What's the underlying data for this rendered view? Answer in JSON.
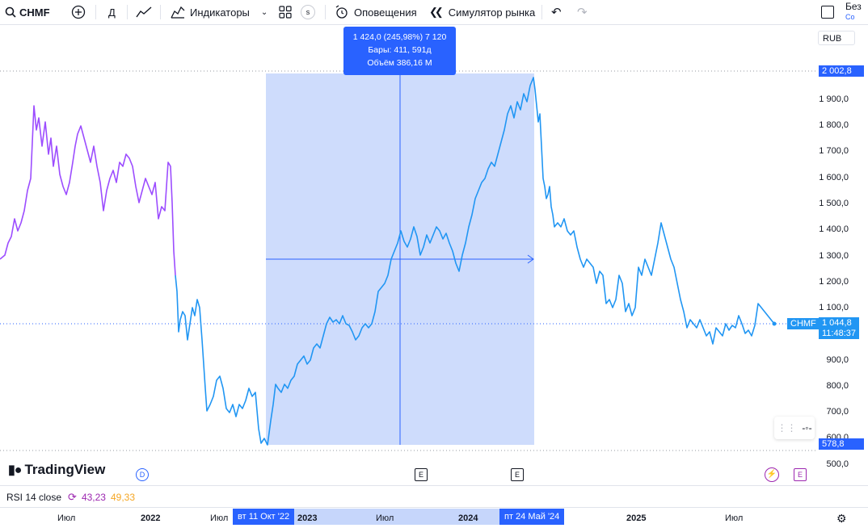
{
  "toolbar": {
    "symbol": "CHMF",
    "interval": "Д",
    "indicators": "Индикаторы",
    "alerts": "Оповещения",
    "replay": "Симулятор рынка",
    "unnamed_top": "Без",
    "unnamed_sub": "Со"
  },
  "currency": "RUB",
  "y_axis": [
    "1 900,0",
    "1 800,0",
    "1 700,0",
    "1 600,0",
    "1 500,0",
    "1 400,0",
    "1 300,0",
    "1 200,0",
    "1 100,0",
    "900,0",
    "800,0",
    "700,0",
    "600,0",
    "500,0"
  ],
  "price_tags": {
    "high": "2 002,8",
    "low": "578,8",
    "last_symbol": "CHMF",
    "last_price": "1 044,8",
    "last_time": "11:48:37"
  },
  "measure": {
    "line1": "1 424,0 (245,98%) 7 120",
    "line2": "Бары: 411, 591д",
    "line3": "Объём 386,16 M"
  },
  "logo": "TradingView",
  "rsi": {
    "label": "RSI 14 close",
    "v1": "43,23",
    "v2": "49,33"
  },
  "x_axis": [
    "Июл",
    "2022",
    "Июл",
    "2023",
    "Июл",
    "2024",
    "2025",
    "Июл"
  ],
  "x_tags": {
    "start": "вт 11 Окт '22",
    "end": "пт 24 Май '24"
  },
  "markers": {
    "dividend": "D",
    "earnings": "E"
  },
  "colors": {
    "accent": "#2962ff",
    "line_up": "#9c4dff",
    "line_down": "#2196f3",
    "measure_fill": "#c6d6fb"
  },
  "chart_data": {
    "type": "line",
    "title": "CHMF",
    "ylim": [
      500,
      2050
    ],
    "x": [
      "2021-05",
      "2021-07",
      "2021-09",
      "2021-11",
      "2022-01",
      "2022-03",
      "2022-05",
      "2022-07",
      "2022-09",
      "2022-10",
      "2022-12",
      "2023-02",
      "2023-04",
      "2023-06",
      "2023-08",
      "2023-10",
      "2023-12",
      "2024-02",
      "2024-04",
      "2024-05",
      "2024-07",
      "2024-09",
      "2024-11",
      "2025-01",
      "2025-03",
      "2025-05",
      "2025-07",
      "2025-08"
    ],
    "values": [
      1280,
      1880,
      1580,
      1800,
      1620,
      1600,
      1250,
      760,
      670,
      580,
      850,
      900,
      1060,
      1050,
      1300,
      1420,
      1240,
      1600,
      1880,
      2000,
      1500,
      1200,
      1100,
      1300,
      1430,
      1180,
      980,
      1060
    ]
  }
}
